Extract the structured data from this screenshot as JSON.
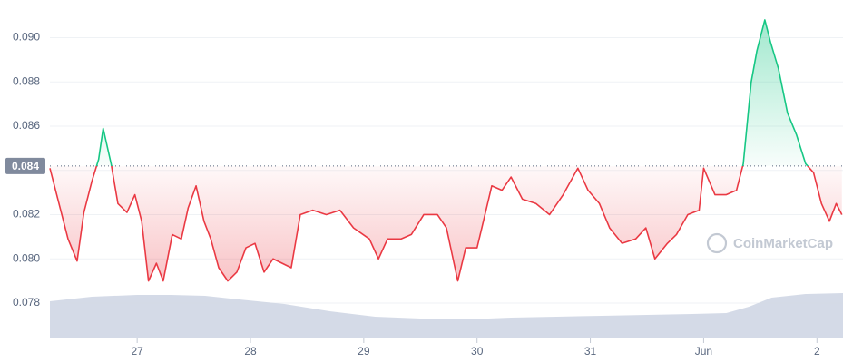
{
  "chart_data": {
    "type": "line",
    "x": [
      26.23,
      26.33,
      26.39,
      26.47,
      26.53,
      26.6,
      26.66,
      26.7,
      26.77,
      26.83,
      26.91,
      26.98,
      27.04,
      27.1,
      27.17,
      27.23,
      27.31,
      27.39,
      27.45,
      27.52,
      27.59,
      27.65,
      27.72,
      27.8,
      27.88,
      27.96,
      28.04,
      28.12,
      28.2,
      28.28,
      28.36,
      28.44,
      28.55,
      28.67,
      28.79,
      28.91,
      29.05,
      29.13,
      29.21,
      29.33,
      29.42,
      29.53,
      29.65,
      29.73,
      29.78,
      29.83,
      29.9,
      30.0,
      30.07,
      30.13,
      30.22,
      30.3,
      30.4,
      30.52,
      30.64,
      30.76,
      30.89,
      30.98,
      31.08,
      31.17,
      31.28,
      31.4,
      31.49,
      31.57,
      31.68,
      31.76,
      31.86,
      31.96,
      32.0,
      32.1,
      32.2,
      32.29,
      32.35,
      32.42,
      32.47,
      32.54,
      32.59,
      32.66,
      32.74,
      32.82,
      32.9,
      32.97,
      33.04,
      33.11,
      33.17,
      33.22
    ],
    "values": [
      0.0841,
      0.0821,
      0.0809,
      0.0799,
      0.0821,
      0.0835,
      0.0845,
      0.0859,
      0.0843,
      0.0825,
      0.0821,
      0.0829,
      0.0817,
      0.079,
      0.0798,
      0.079,
      0.0811,
      0.0809,
      0.0823,
      0.0833,
      0.0817,
      0.0809,
      0.0796,
      0.079,
      0.0794,
      0.0805,
      0.0807,
      0.0794,
      0.08,
      0.0798,
      0.0796,
      0.082,
      0.0822,
      0.082,
      0.0822,
      0.0814,
      0.0809,
      0.08,
      0.0809,
      0.0809,
      0.0811,
      0.082,
      0.082,
      0.0814,
      0.0802,
      0.079,
      0.0805,
      0.0805,
      0.082,
      0.0833,
      0.0831,
      0.0837,
      0.0827,
      0.0825,
      0.082,
      0.0829,
      0.0841,
      0.0831,
      0.0825,
      0.0814,
      0.0807,
      0.0809,
      0.0814,
      0.08,
      0.0807,
      0.0811,
      0.082,
      0.0822,
      0.0841,
      0.0829,
      0.0829,
      0.0831,
      0.0843,
      0.088,
      0.0894,
      0.0908,
      0.0898,
      0.0886,
      0.0866,
      0.0856,
      0.0843,
      0.0839,
      0.0825,
      0.0817,
      0.0825,
      0.082
    ],
    "up_color": "#16c784",
    "down_color": "#ea3943",
    "baseline": {
      "value": 0.0842,
      "label": "0.084"
    },
    "xlim": [
      26.23,
      33.23
    ],
    "xticks": [
      27,
      28,
      29,
      30,
      31,
      {
        "value": 32,
        "label": "Jun"
      },
      {
        "value": 33,
        "label": "2"
      }
    ],
    "ylim": [
      0.0764,
      0.0917
    ],
    "yticks": [
      0.078,
      {
        "value": 0.08,
        "label": "0.080"
      },
      0.082,
      0.084,
      0.086,
      0.088,
      {
        "value": 0.09,
        "label": "0.090"
      }
    ],
    "grid": true,
    "volume": {
      "x": [
        26.23,
        26.6,
        27.0,
        27.3,
        27.6,
        27.9,
        28.3,
        28.7,
        29.1,
        29.5,
        29.9,
        30.3,
        30.7,
        31.1,
        31.5,
        31.9,
        32.2,
        32.4,
        32.6,
        32.9,
        33.23
      ],
      "values": [
        41,
        46,
        48,
        48,
        47,
        43,
        38,
        30,
        24,
        22,
        21,
        23,
        24,
        25,
        26,
        27,
        28,
        35,
        45,
        49,
        50
      ],
      "lim": [
        0,
        100
      ],
      "color": "#cfd6e4"
    },
    "watermark": "CoinMarketCap"
  }
}
